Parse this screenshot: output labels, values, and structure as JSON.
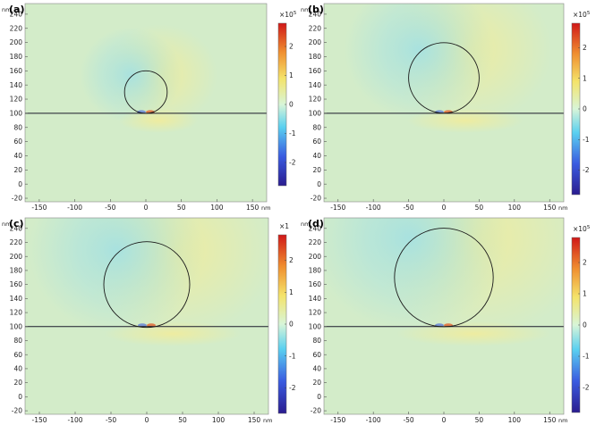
{
  "figure": {
    "units": {
      "y": "nm",
      "x": "nm"
    },
    "colorscale": {
      "name": "rainbow",
      "stops": [
        "#2a1c8f",
        "#3a5be0",
        "#5ad0f0",
        "#d8f5d8",
        "#f4e36a",
        "#f09030",
        "#d01818"
      ]
    },
    "background_fill": "#d3ecc9"
  },
  "chart_data": [
    {
      "type": "heatmap",
      "label": "(a)",
      "colorbar_multiplier": "×10",
      "colorbar_exponent": "5",
      "colorbar_ticks": [
        "2",
        "1",
        "0",
        "-1",
        "-2"
      ],
      "xlim": [
        -170,
        170
      ],
      "ylim": [
        -25,
        255
      ],
      "xticks": [
        "-150",
        "-100",
        "-50",
        "0",
        "50",
        "100",
        "150"
      ],
      "yticks": [
        "240",
        "220",
        "200",
        "180",
        "160",
        "140",
        "120",
        "100",
        "80",
        "60",
        "40",
        "20",
        "0",
        "-20"
      ],
      "substrate_y": 100,
      "particle": {
        "cx": 0,
        "cy": 130,
        "r": 30
      }
    },
    {
      "type": "heatmap",
      "label": "(b)",
      "colorbar_multiplier": "×10",
      "colorbar_exponent": "5",
      "colorbar_ticks": [
        "2",
        "1",
        "0",
        "-1",
        "-2"
      ],
      "xlim": [
        -170,
        170
      ],
      "ylim": [
        -25,
        255
      ],
      "xticks": [
        "-150",
        "-100",
        "-50",
        "0",
        "50",
        "100",
        "150"
      ],
      "yticks": [
        "240",
        "220",
        "200",
        "180",
        "160",
        "140",
        "120",
        "100",
        "80",
        "60",
        "40",
        "20",
        "0",
        "-20"
      ],
      "substrate_y": 100,
      "particle": {
        "cx": 0,
        "cy": 150,
        "r": 50
      }
    },
    {
      "type": "heatmap",
      "label": "(c)",
      "colorbar_multiplier": "×1",
      "colorbar_exponent": "",
      "colorbar_ticks": [
        "2",
        "1",
        "0",
        "-1",
        "-2"
      ],
      "xlim": [
        -170,
        170
      ],
      "ylim": [
        -25,
        255
      ],
      "xticks": [
        "-150",
        "-100",
        "-50",
        "0",
        "50",
        "100",
        "150"
      ],
      "yticks": [
        "240",
        "220",
        "200",
        "180",
        "160",
        "140",
        "120",
        "100",
        "80",
        "60",
        "40",
        "20",
        "0",
        "-20"
      ],
      "substrate_y": 100,
      "particle": {
        "cx": 0,
        "cy": 160,
        "r": 60
      }
    },
    {
      "type": "heatmap",
      "label": "(d)",
      "colorbar_multiplier": "×10",
      "colorbar_exponent": "5",
      "colorbar_ticks": [
        "2",
        "1",
        "0",
        "-1",
        "-2"
      ],
      "xlim": [
        -170,
        170
      ],
      "ylim": [
        -25,
        255
      ],
      "xticks": [
        "-150",
        "-100",
        "-50",
        "0",
        "50",
        "100",
        "150"
      ],
      "yticks": [
        "240",
        "220",
        "200",
        "180",
        "160",
        "140",
        "120",
        "100",
        "80",
        "60",
        "40",
        "20",
        "0",
        "-20"
      ],
      "substrate_y": 100,
      "particle": {
        "cx": 0,
        "cy": 170,
        "r": 70
      }
    }
  ]
}
